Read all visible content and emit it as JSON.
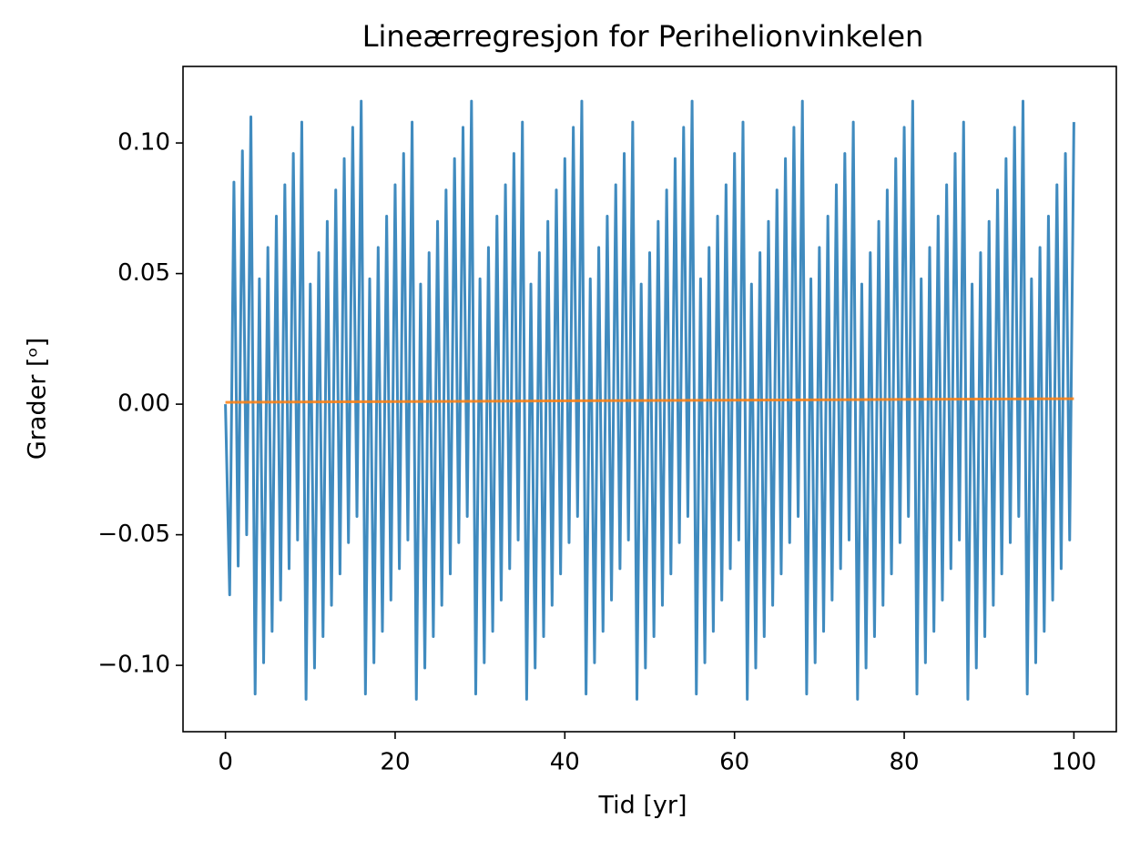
{
  "chart_data": {
    "type": "line",
    "title": "Lineærregresjon for Perihelionvinkelen",
    "xlabel": "Tid [yr]",
    "ylabel": "Grader [ᵒ]",
    "xlim": [
      -5,
      105
    ],
    "ylim": [
      -0.1254,
      0.1293
    ],
    "xticks": [
      0,
      20,
      40,
      60,
      80,
      100
    ],
    "yticks": [
      {
        "value": -0.1,
        "label": "−0.10"
      },
      {
        "value": -0.05,
        "label": "−0.05"
      },
      {
        "value": 0,
        "label": "0.00"
      },
      {
        "value": 0.05,
        "label": "0.05"
      },
      {
        "value": 0.1,
        "label": "0.10"
      }
    ],
    "grid": false,
    "series": [
      {
        "color": "#1f77b4",
        "x": [
          0,
          0.5,
          1,
          1.5,
          2,
          2.5,
          3,
          3.5,
          4,
          4.5,
          5,
          5.5,
          6,
          6.5,
          7,
          7.5,
          8,
          8.5,
          9,
          9.5,
          10,
          10.5,
          11,
          11.5,
          12,
          12.5,
          13,
          13.5,
          14,
          14.5,
          15,
          15.5,
          16,
          16.5,
          17,
          17.5,
          18,
          18.5,
          19,
          19.5,
          20,
          20.5,
          21,
          21.5,
          22,
          22.5,
          23,
          23.5,
          24,
          24.5,
          25,
          25.5,
          26,
          26.5,
          27,
          27.5,
          28,
          28.5,
          29,
          29.5,
          30,
          30.5,
          31,
          31.5,
          32,
          32.5,
          33,
          33.5,
          34,
          34.5,
          35,
          35.5,
          36,
          36.5,
          37,
          37.5,
          38,
          38.5,
          39,
          39.5,
          40,
          40.5,
          41,
          41.5,
          42,
          42.5,
          43,
          43.5,
          44,
          44.5,
          45,
          45.5,
          46,
          46.5,
          47,
          47.5,
          48,
          48.5,
          49,
          49.5,
          50,
          50.5,
          51,
          51.5,
          52,
          52.5,
          53,
          53.5,
          54,
          54.5,
          55,
          55.5,
          56,
          56.5,
          57,
          57.5,
          58,
          58.5,
          59,
          59.5,
          60,
          60.5,
          61,
          61.5,
          62,
          62.5,
          63,
          63.5,
          64,
          64.5,
          65,
          65.5,
          66,
          66.5,
          67,
          67.5,
          68,
          68.5,
          69,
          69.5,
          70,
          70.5,
          71,
          71.5,
          72,
          72.5,
          73,
          73.5,
          74,
          74.5,
          75,
          75.5,
          76,
          76.5,
          77,
          77.5,
          78,
          78.5,
          79,
          79.5,
          80,
          80.5,
          81,
          81.5,
          82,
          82.5,
          83,
          83.5,
          84,
          84.5,
          85,
          85.5,
          86,
          86.5,
          87,
          87.5,
          88,
          88.5,
          89,
          89.5,
          90,
          90.5,
          91,
          91.5,
          92,
          92.5,
          93,
          93.5,
          94,
          94.5,
          95,
          95.5,
          96,
          96.5,
          97,
          97.5,
          98,
          98.5,
          99,
          99.5,
          100
        ],
        "values": [
          0,
          -0.073,
          0.085,
          -0.062,
          0.097,
          -0.05,
          0.11,
          -0.111,
          0.048,
          -0.099,
          0.06,
          -0.087,
          0.072,
          -0.075,
          0.084,
          -0.063,
          0.096,
          -0.052,
          0.108,
          -0.113,
          0.046,
          -0.101,
          0.058,
          -0.089,
          0.07,
          -0.077,
          0.082,
          -0.065,
          0.094,
          -0.053,
          0.106,
          -0.043,
          0.116,
          -0.111,
          0.048,
          -0.099,
          0.06,
          -0.087,
          0.072,
          -0.075,
          0.084,
          -0.063,
          0.096,
          -0.052,
          0.108,
          -0.113,
          0.046,
          -0.101,
          0.058,
          -0.089,
          0.07,
          -0.077,
          0.082,
          -0.065,
          0.094,
          -0.053,
          0.106,
          -0.043,
          0.116,
          -0.111,
          0.048,
          -0.099,
          0.06,
          -0.087,
          0.072,
          -0.075,
          0.084,
          -0.063,
          0.096,
          -0.052,
          0.108,
          -0.113,
          0.046,
          -0.101,
          0.058,
          -0.089,
          0.07,
          -0.077,
          0.082,
          -0.065,
          0.094,
          -0.053,
          0.106,
          -0.043,
          0.116,
          -0.111,
          0.048,
          -0.099,
          0.06,
          -0.087,
          0.072,
          -0.075,
          0.084,
          -0.063,
          0.096,
          -0.052,
          0.108,
          -0.113,
          0.046,
          -0.101,
          0.058,
          -0.089,
          0.07,
          -0.077,
          0.082,
          -0.065,
          0.094,
          -0.053,
          0.106,
          -0.043,
          0.116,
          -0.111,
          0.048,
          -0.099,
          0.06,
          -0.087,
          0.072,
          -0.075,
          0.084,
          -0.063,
          0.096,
          -0.052,
          0.108,
          -0.113,
          0.046,
          -0.101,
          0.058,
          -0.089,
          0.07,
          -0.077,
          0.082,
          -0.065,
          0.094,
          -0.053,
          0.106,
          -0.043,
          0.116,
          -0.111,
          0.048,
          -0.099,
          0.06,
          -0.087,
          0.072,
          -0.075,
          0.084,
          -0.063,
          0.096,
          -0.052,
          0.108,
          -0.113,
          0.046,
          -0.101,
          0.058,
          -0.089,
          0.07,
          -0.077,
          0.082,
          -0.065,
          0.094,
          -0.053,
          0.106,
          -0.043,
          0.116,
          -0.111,
          0.048,
          -0.099,
          0.06,
          -0.087,
          0.072,
          -0.075,
          0.084,
          -0.063,
          0.096,
          -0.052,
          0.108,
          -0.113,
          0.046,
          -0.101,
          0.058,
          -0.089,
          0.07,
          -0.077,
          0.082,
          -0.065,
          0.094,
          -0.053,
          0.106,
          -0.043,
          0.116,
          -0.111,
          0.048,
          -0.099,
          0.06,
          -0.087,
          0.072,
          -0.075,
          0.084,
          -0.063,
          0.096,
          -0.052,
          0.108
        ]
      },
      {
        "color": "#ff7f0e",
        "x": [
          0,
          100
        ],
        "values": [
          0.0007,
          0.0021
        ]
      }
    ]
  }
}
